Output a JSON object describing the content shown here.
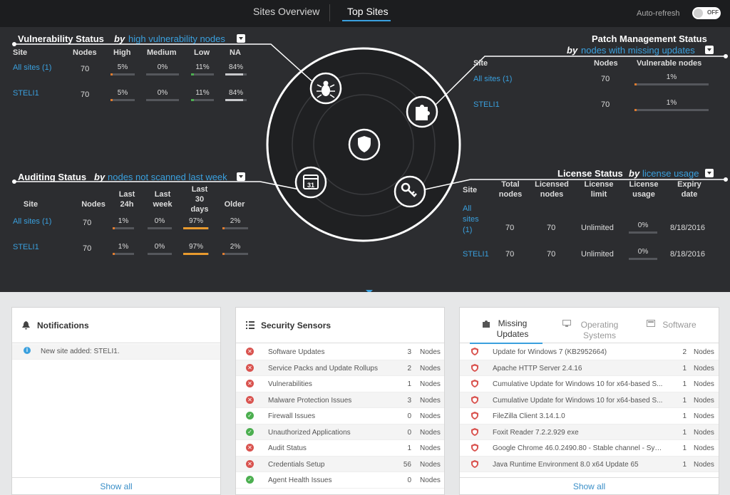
{
  "topbar": {
    "tab1": "Sites Overview",
    "tab2": "Top Sites",
    "autorefresh_label": "Auto-refresh",
    "toggle_state": "OFF"
  },
  "vuln": {
    "title": "Vulnerability Status",
    "by": "by",
    "link": "high vulnerability nodes",
    "headers": [
      "Site",
      "Nodes",
      "High",
      "Medium",
      "Low",
      "NA"
    ],
    "rows": [
      {
        "site": "All sites (1)",
        "nodes": "70",
        "vals": [
          "5%",
          "0%",
          "11%",
          "84%"
        ],
        "fracs": [
          0.05,
          0,
          0.11,
          0.84
        ]
      },
      {
        "site": "STELI1",
        "nodes": "70",
        "vals": [
          "5%",
          "0%",
          "11%",
          "84%"
        ],
        "fracs": [
          0.05,
          0,
          0.11,
          0.84
        ]
      }
    ],
    "colors": [
      "#e07b2e",
      "#999999",
      "#4caf50",
      "#c8c9cc"
    ]
  },
  "audit": {
    "title": "Auditing Status",
    "by": "by",
    "link": "nodes not scanned last week",
    "headers": [
      "Site",
      "Nodes",
      "Last 24h",
      "Last week",
      "Last 30 days",
      "Older"
    ],
    "rows": [
      {
        "site": "All sites (1)",
        "nodes": "70",
        "vals": [
          "1%",
          "0%",
          "97%",
          "2%"
        ],
        "fracs": [
          0.01,
          0,
          0.97,
          0.02
        ]
      },
      {
        "site": "STELI1",
        "nodes": "70",
        "vals": [
          "1%",
          "0%",
          "97%",
          "2%"
        ],
        "fracs": [
          0.01,
          0,
          0.97,
          0.02
        ]
      }
    ]
  },
  "patch": {
    "title": "Patch Management Status",
    "by": "by",
    "link": "nodes with missing updates",
    "headers": [
      "Site",
      "Nodes",
      "Vulnerable nodes"
    ],
    "rows": [
      {
        "site": "All sites (1)",
        "nodes": "70",
        "val": "1%",
        "frac": 0.01
      },
      {
        "site": "STELI1",
        "nodes": "70",
        "val": "1%",
        "frac": 0.01
      }
    ]
  },
  "license": {
    "title": "License Status",
    "by": "by",
    "link": "license usage",
    "headers": [
      "Site",
      "Total nodes",
      "Licensed nodes",
      "License limit",
      "License usage",
      "Expiry date"
    ],
    "rows": [
      {
        "site": "All sites (1)",
        "total": "70",
        "licensed": "70",
        "limit": "Unlimited",
        "usage": "0%",
        "expiry": "8/18/2016"
      },
      {
        "site": "STELI1",
        "total": "70",
        "licensed": "70",
        "limit": "Unlimited",
        "usage": "0%",
        "expiry": "8/18/2016"
      }
    ]
  },
  "icons": {
    "vuln": "bug-icon",
    "patch": "puzzle-icon",
    "center": "shield-icon",
    "audit": "calendar-icon",
    "license": "key-icon"
  },
  "calendar_day": "31",
  "notifications": {
    "title": "Notifications",
    "items": [
      {
        "text": "New site added: STELI1."
      }
    ],
    "show_all": "Show all"
  },
  "sensors": {
    "title": "Security Sensors",
    "unit": "Nodes",
    "show_all": "Show all",
    "items": [
      {
        "name": "Software Updates",
        "count": "3",
        "status": "error"
      },
      {
        "name": "Service Packs and Update Rollups",
        "count": "2",
        "status": "error"
      },
      {
        "name": "Vulnerabilities",
        "count": "1",
        "status": "error"
      },
      {
        "name": "Malware Protection Issues",
        "count": "3",
        "status": "error"
      },
      {
        "name": "Firewall Issues",
        "count": "0",
        "status": "ok"
      },
      {
        "name": "Unauthorized Applications",
        "count": "0",
        "status": "ok"
      },
      {
        "name": "Audit Status",
        "count": "1",
        "status": "error"
      },
      {
        "name": "Credentials Setup",
        "count": "56",
        "status": "error"
      },
      {
        "name": "Agent Health Issues",
        "count": "0",
        "status": "ok"
      }
    ]
  },
  "updates": {
    "tabs": [
      {
        "line1": "Missing",
        "line2": "Updates"
      },
      {
        "line1": "Operating",
        "line2": "Systems"
      },
      {
        "line1": "Software",
        "line2": ""
      }
    ],
    "unit": "Nodes",
    "show_all": "Show all",
    "items": [
      {
        "name": "Update for Windows 7 (KB2952664)",
        "count": "2"
      },
      {
        "name": "Apache HTTP Server 2.4.16",
        "count": "1"
      },
      {
        "name": "Cumulative Update for Windows 10 for x64-based S...",
        "count": "1"
      },
      {
        "name": "Cumulative Update for Windows 10 for x64-based S...",
        "count": "1"
      },
      {
        "name": "FileZilla Client 3.14.1.0",
        "count": "1"
      },
      {
        "name": "Foxit Reader 7.2.2.929 exe",
        "count": "1"
      },
      {
        "name": "Google Chrome 46.0.2490.80 - Stable channel - Syst...",
        "count": "1"
      },
      {
        "name": "Java Runtime Environment 8.0 x64 Update 65",
        "count": "1"
      }
    ]
  },
  "colors": {
    "accent": "#3aa0de",
    "error": "#d9534f",
    "ok": "#4caf50",
    "orange": "#e07b2e"
  }
}
